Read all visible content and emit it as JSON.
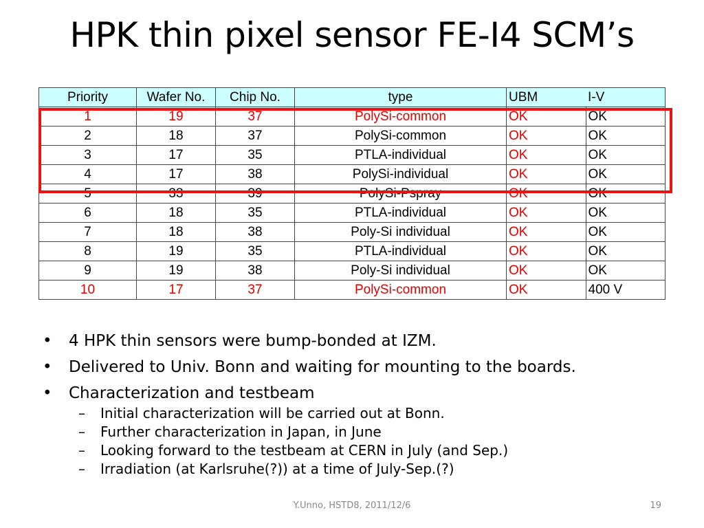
{
  "title": "HPK thin pixel sensor FE-I4 SCM’s",
  "table": {
    "headers": [
      "Priority",
      "Wafer No.",
      "Chip No.",
      "type",
      "UBM",
      "I-V"
    ],
    "rows": [
      {
        "priority": "1",
        "wafer": "19",
        "chip": "37",
        "type": "PolySi-common",
        "ubm": "OK",
        "iv": "OK",
        "red": true
      },
      {
        "priority": "2",
        "wafer": "18",
        "chip": "37",
        "type": "PolySi-common",
        "ubm": "OK",
        "iv": "OK",
        "red": false
      },
      {
        "priority": "3",
        "wafer": "17",
        "chip": "35",
        "type": "PTLA-individual",
        "ubm": "OK",
        "iv": "OK",
        "red": false
      },
      {
        "priority": "4",
        "wafer": "17",
        "chip": "38",
        "type": "PolySi-individual",
        "ubm": "OK",
        "iv": "OK",
        "red": false
      },
      {
        "priority": "5",
        "wafer": "33",
        "chip": "39",
        "type": "PolySi-Pspray",
        "ubm": "OK",
        "iv": "OK",
        "red": false
      },
      {
        "priority": "6",
        "wafer": "18",
        "chip": "35",
        "type": "PTLA-individual",
        "ubm": "OK",
        "iv": "OK",
        "red": false
      },
      {
        "priority": "7",
        "wafer": "18",
        "chip": "38",
        "type": "Poly-Si individual",
        "ubm": "OK",
        "iv": "OK",
        "red": false
      },
      {
        "priority": "8",
        "wafer": "19",
        "chip": "35",
        "type": "PTLA-individual",
        "ubm": "OK",
        "iv": "OK",
        "red": false
      },
      {
        "priority": "9",
        "wafer": "19",
        "chip": "38",
        "type": "Poly-Si individual",
        "ubm": "OK",
        "iv": "OK",
        "red": false
      },
      {
        "priority": "10",
        "wafer": "17",
        "chip": "37",
        "type": "PolySi-common",
        "ubm": "OK",
        "iv": "400 V",
        "red": true
      }
    ]
  },
  "bullets": [
    {
      "text": "4 HPK thin sensors were bump-bonded at IZM.",
      "sub": []
    },
    {
      "text": "Delivered to Univ. Bonn and waiting for mounting to the boards.",
      "sub": []
    },
    {
      "text": "Characterization and testbeam",
      "sub": [
        "Initial characterization will be carried out at Bonn.",
        "Further characterization in Japan, in June",
        "Looking forward to the testbeam at CERN in July (and Sep.)",
        "Irradiation (at Karlsruhe(?)) at a time of July-Sep.(?)"
      ]
    }
  ],
  "bullet_glyph": "•",
  "sub_glyph": "–",
  "footer": {
    "center": "Y.Unno, HSTD8, 2011/12/6",
    "page_number": "19"
  },
  "colors": {
    "header_bg": "#ccffff",
    "highlight_red": "#e60000",
    "box_red": "#ee1111"
  }
}
